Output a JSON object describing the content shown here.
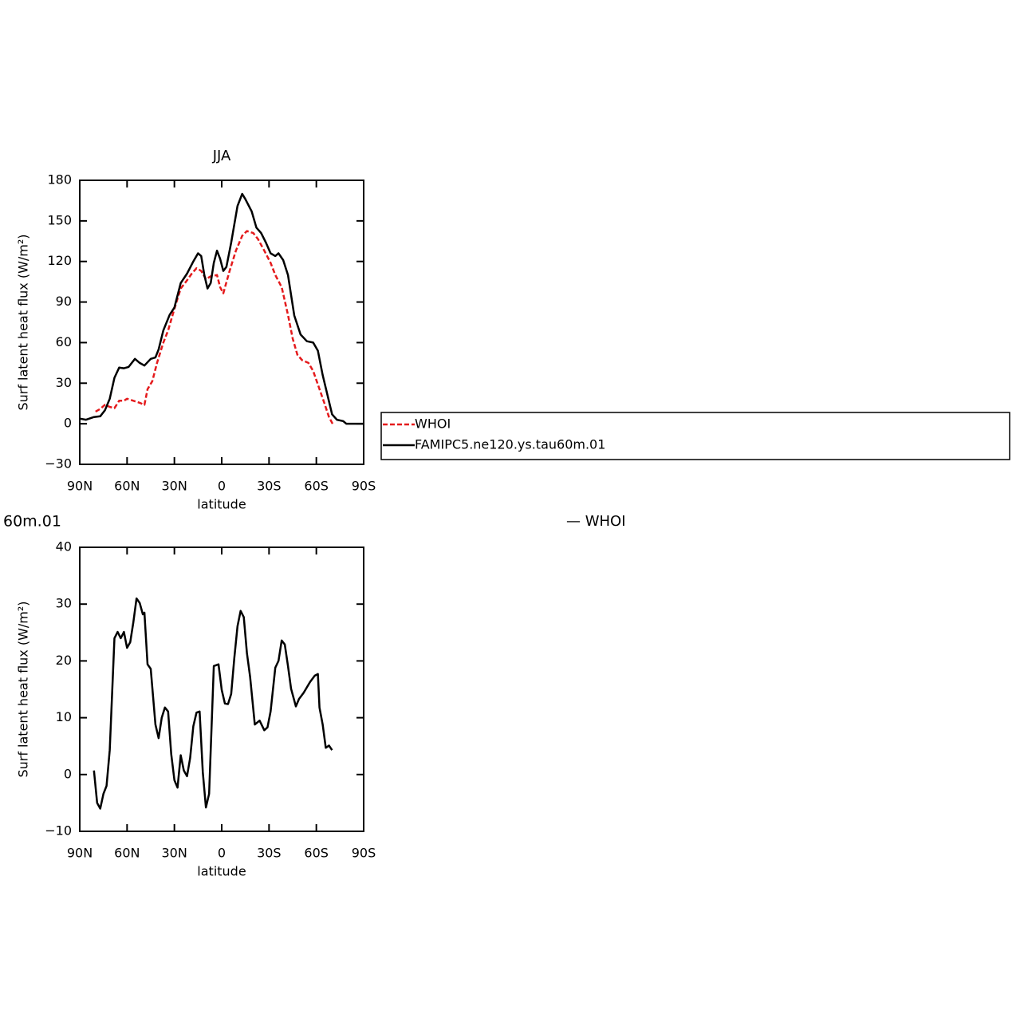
{
  "chart_data": [
    {
      "type": "line",
      "title": "JJA",
      "xlabel": "latitude",
      "ylabel": "Surf latent heat flux (W/m²)",
      "xlim": [
        90,
        -90
      ],
      "ylim": [
        -30,
        180
      ],
      "xticks": [
        {
          "value": 90,
          "label": "90N"
        },
        {
          "value": 60,
          "label": "60N"
        },
        {
          "value": 30,
          "label": "30N"
        },
        0,
        {
          "value": -30,
          "label": "30S"
        },
        {
          "value": -60,
          "label": "60S"
        },
        {
          "value": -90,
          "label": "90S"
        }
      ],
      "yticks": [
        {
          "value": -30,
          "label": "−30"
        },
        0,
        30,
        60,
        90,
        120,
        150,
        180
      ],
      "legend": "right",
      "series": [
        {
          "name": "WHOI",
          "color": "#e41a1c",
          "dashed": true,
          "x": [
            80,
            77,
            74,
            71,
            68,
            65,
            62,
            60,
            56,
            52,
            49,
            47,
            44,
            41,
            37,
            34,
            30,
            26,
            22,
            19,
            16,
            13,
            10,
            7,
            3,
            1,
            -1,
            -5,
            -9,
            -13,
            -16,
            -20,
            -23,
            -27,
            -31,
            -34,
            -38,
            -42,
            -45,
            -48,
            -51,
            -55,
            -58,
            -61,
            -65,
            -68,
            -71
          ],
          "values": [
            9,
            11,
            14,
            12.5,
            11.5,
            17,
            17,
            18.5,
            17,
            15.5,
            14,
            25.5,
            31.5,
            45,
            60,
            69,
            85,
            100,
            106,
            111,
            115,
            113,
            107,
            109,
            110,
            101,
            96.5,
            113,
            128,
            139,
            142.5,
            141,
            136.5,
            128,
            119,
            110,
            101,
            80.5,
            63,
            51,
            47,
            45,
            39,
            29,
            15.5,
            5,
            -1.5
          ]
        },
        {
          "name": "FAMIPC5.ne120.ys.tau60m.01",
          "color": "#000000",
          "dashed": false,
          "x": [
            90,
            86,
            81,
            77,
            74,
            71,
            68,
            65,
            62,
            59,
            55,
            52,
            49,
            45,
            42,
            40,
            37,
            33,
            30,
            26,
            22,
            18,
            15,
            13,
            11,
            9,
            7,
            5,
            3,
            1,
            -1,
            -3,
            -6,
            -10,
            -13,
            -15,
            -19,
            -22,
            -25,
            -28,
            -31,
            -34,
            -36,
            -39,
            -42,
            -46,
            -50,
            -54,
            -58,
            -61,
            -64,
            -67,
            -70,
            -73,
            -77,
            -79,
            -83,
            -90
          ],
          "values": [
            3.8,
            3,
            5,
            5.5,
            10,
            18.5,
            34,
            41.5,
            41,
            42,
            48,
            45,
            43,
            48,
            49,
            55,
            69,
            80.5,
            86,
            104,
            111,
            120,
            126,
            124,
            110,
            100,
            104,
            119,
            128,
            122,
            113,
            116,
            134,
            161,
            170,
            166,
            157,
            145,
            141,
            134,
            126,
            124,
            126,
            121,
            110,
            80,
            66,
            61,
            60,
            54,
            36,
            21.5,
            7,
            3,
            2,
            0,
            0,
            0
          ]
        }
      ]
    },
    {
      "type": "line",
      "title": "60m.01",
      "annotation": "— WHOI",
      "xlabel": "latitude",
      "ylabel": "Surf latent heat flux (W/m²)",
      "xlim": [
        90,
        -90
      ],
      "ylim": [
        -10,
        40
      ],
      "xticks": [
        {
          "value": 90,
          "label": "90N"
        },
        {
          "value": 60,
          "label": "60N"
        },
        {
          "value": 30,
          "label": "30N"
        },
        0,
        {
          "value": -30,
          "label": "30S"
        },
        {
          "value": -60,
          "label": "60S"
        },
        {
          "value": -90,
          "label": "90S"
        }
      ],
      "yticks": [
        {
          "value": -10,
          "label": "−10"
        },
        0,
        10,
        20,
        30,
        40
      ],
      "series": [
        {
          "color": "#000000",
          "dashed": false,
          "x": [
            81,
            79,
            77,
            75,
            73,
            71,
            68,
            66,
            64,
            62,
            60,
            58,
            56,
            54,
            52,
            50,
            49,
            47,
            45,
            42,
            40,
            38,
            36,
            34,
            32,
            30,
            28,
            26,
            24,
            22,
            20,
            18,
            16,
            14,
            12,
            10,
            8,
            5,
            2,
            0,
            -2,
            -4,
            -6,
            -8,
            -10,
            -12,
            -14,
            -16,
            -18,
            -21,
            -24,
            -27,
            -29,
            -31,
            -34,
            -36,
            -38,
            -40,
            -42,
            -44,
            -47,
            -49,
            -52,
            -56,
            -59,
            -61,
            -62,
            -64,
            -66,
            -68,
            -70
          ],
          "values": [
            0.7,
            -5,
            -6,
            -3.4,
            -2,
            4.3,
            24,
            25.1,
            24,
            25.1,
            22.3,
            23.3,
            26.8,
            31,
            30.2,
            28.2,
            28.5,
            19.4,
            18.6,
            8.8,
            6.4,
            10,
            11.8,
            11.1,
            3.6,
            -1,
            -2.3,
            3.4,
            0.7,
            -0.3,
            2.9,
            8.5,
            10.9,
            11.1,
            0.4,
            -5.8,
            -3.4,
            19.1,
            19.4,
            14.9,
            12.5,
            12.4,
            14.2,
            20.5,
            26.1,
            28.8,
            27.7,
            21.4,
            17.2,
            8.8,
            9.5,
            7.8,
            8.3,
            11.1,
            18.8,
            20,
            23.6,
            22.9,
            19.1,
            15.1,
            12,
            13.3,
            14.4,
            16.3,
            17.4,
            17.7,
            11.8,
            8.8,
            4.7,
            5.1,
            4.3
          ]
        }
      ]
    }
  ]
}
